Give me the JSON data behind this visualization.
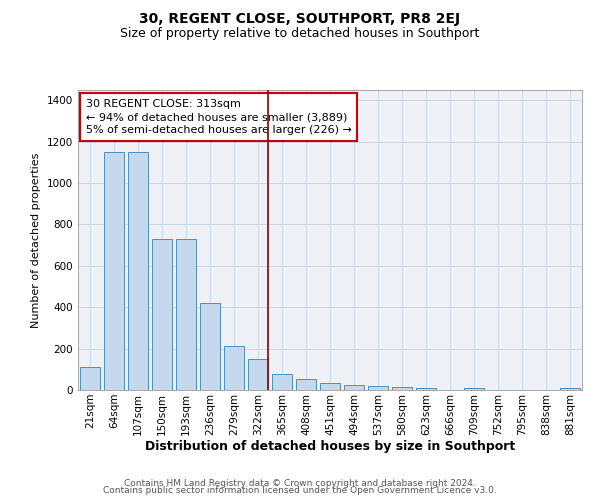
{
  "title": "30, REGENT CLOSE, SOUTHPORT, PR8 2EJ",
  "subtitle": "Size of property relative to detached houses in Southport",
  "xlabel": "Distribution of detached houses by size in Southport",
  "ylabel": "Number of detached properties",
  "categories": [
    "21sqm",
    "64sqm",
    "107sqm",
    "150sqm",
    "193sqm",
    "236sqm",
    "279sqm",
    "322sqm",
    "365sqm",
    "408sqm",
    "451sqm",
    "494sqm",
    "537sqm",
    "580sqm",
    "623sqm",
    "666sqm",
    "709sqm",
    "752sqm",
    "795sqm",
    "838sqm",
    "881sqm"
  ],
  "values": [
    110,
    1150,
    1150,
    730,
    730,
    420,
    215,
    150,
    75,
    55,
    35,
    25,
    20,
    15,
    12,
    0,
    12,
    0,
    0,
    0,
    12
  ],
  "bar_color": "#c5d8ed",
  "bar_edge_color": "#4a90c4",
  "red_line_index": 7,
  "annotation_text": "30 REGENT CLOSE: 313sqm\n← 94% of detached houses are smaller (3,889)\n5% of semi-detached houses are larger (226) →",
  "annotation_box_color": "#ffffff",
  "annotation_box_edge_color": "#cc0000",
  "footer1": "Contains HM Land Registry data © Crown copyright and database right 2024.",
  "footer2": "Contains public sector information licensed under the Open Government Licence v3.0.",
  "bg_color": "#eef2f7",
  "ylim": [
    0,
    1450
  ],
  "yticks": [
    0,
    200,
    400,
    600,
    800,
    1000,
    1200,
    1400
  ],
  "title_fontsize": 10,
  "subtitle_fontsize": 9,
  "xlabel_fontsize": 9,
  "ylabel_fontsize": 8,
  "tick_fontsize": 7.5,
  "footer_fontsize": 6.5,
  "ann_fontsize": 8
}
